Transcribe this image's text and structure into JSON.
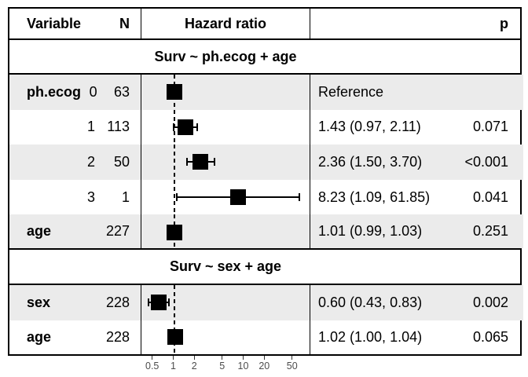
{
  "header": {
    "variable": "Variable",
    "n": "N",
    "hazard_ratio": "Hazard ratio",
    "p": "p"
  },
  "colors": {
    "shaded_row": "#ebebeb",
    "marker": "#000000",
    "border": "#000000",
    "axis_text": "#4d4d4d"
  },
  "chart_data": {
    "type": "forest",
    "x_scale": "log10",
    "x_ticks": [
      0.5,
      1,
      2,
      5,
      10,
      20,
      50
    ],
    "x_tick_labels": [
      "0.5",
      "1",
      "2",
      "5",
      "10",
      "20",
      "50"
    ],
    "reference_line": 1,
    "sections": [
      {
        "title": "Surv ~ ph.ecog + age",
        "rows": [
          {
            "variable": "ph.ecog",
            "level": "0",
            "n": "63",
            "hr": 1.0,
            "ci_low": null,
            "ci_high": null,
            "estimate_label": "Reference",
            "p": "",
            "shaded": true
          },
          {
            "variable": "",
            "level": "1",
            "n": "113",
            "hr": 1.43,
            "ci_low": 0.97,
            "ci_high": 2.11,
            "estimate_label": "1.43 (0.97, 2.11)",
            "p": "0.071",
            "shaded": false
          },
          {
            "variable": "",
            "level": "2",
            "n": "50",
            "hr": 2.36,
            "ci_low": 1.5,
            "ci_high": 3.7,
            "estimate_label": "2.36 (1.50, 3.70)",
            "p": "<0.001",
            "shaded": true
          },
          {
            "variable": "",
            "level": "3",
            "n": "1",
            "hr": 8.23,
            "ci_low": 1.09,
            "ci_high": 61.85,
            "estimate_label": "8.23 (1.09, 61.85)",
            "p": "0.041",
            "shaded": false
          },
          {
            "variable": "age",
            "level": "",
            "n": "227",
            "hr": 1.01,
            "ci_low": 0.99,
            "ci_high": 1.03,
            "estimate_label": "1.01 (0.99, 1.03)",
            "p": "0.251",
            "shaded": true
          }
        ]
      },
      {
        "title": "Surv ~ sex + age",
        "rows": [
          {
            "variable": "sex",
            "level": "",
            "n": "228",
            "hr": 0.6,
            "ci_low": 0.43,
            "ci_high": 0.83,
            "estimate_label": "0.60 (0.43, 0.83)",
            "p": "0.002",
            "shaded": true
          },
          {
            "variable": "age",
            "level": "",
            "n": "228",
            "hr": 1.02,
            "ci_low": 1.0,
            "ci_high": 1.04,
            "estimate_label": "1.02 (1.00, 1.04)",
            "p": "0.065",
            "shaded": false
          }
        ]
      }
    ]
  }
}
